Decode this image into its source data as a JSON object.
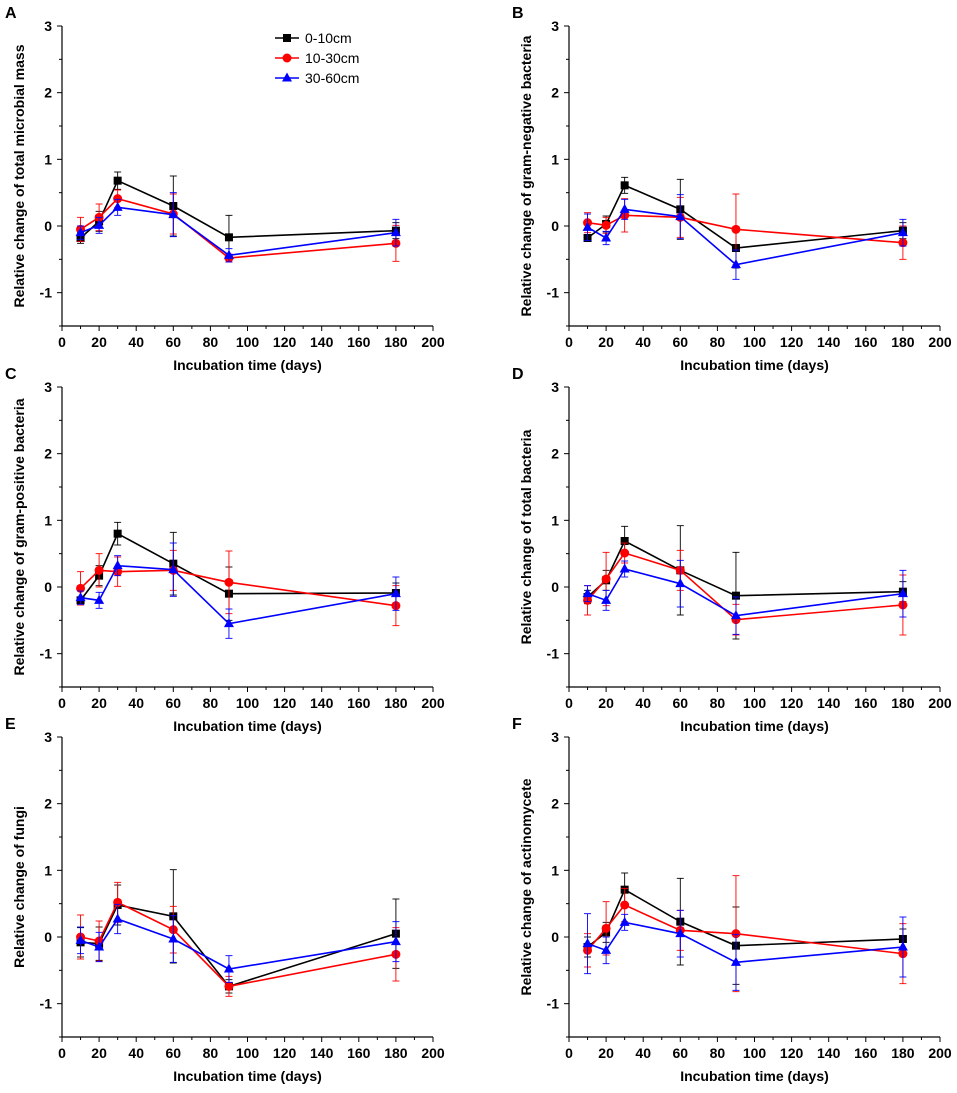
{
  "figure": {
    "xlabel": "Incubation time (days)"
  },
  "legend": [
    {
      "name": "0-10cm",
      "color": "#000000",
      "marker": "square"
    },
    {
      "name": "10-30cm",
      "color": "#ff0000",
      "marker": "circle"
    },
    {
      "name": "30-60cm",
      "color": "#0000ff",
      "marker": "triangle"
    }
  ],
  "chart_data": [
    {
      "panel": "A",
      "type": "line",
      "ylabel": "Relative change of total microbial mass",
      "xlabel": "Incubation time (days)",
      "xlim": [
        0,
        200
      ],
      "ylim": [
        -1.5,
        3
      ],
      "x": [
        10,
        20,
        30,
        60,
        90,
        180
      ],
      "series": [
        {
          "name": "0-10cm",
          "values": [
            -0.18,
            0.07,
            0.68,
            0.3,
            -0.17,
            -0.07
          ],
          "errors": [
            0.08,
            0.15,
            0.13,
            0.45,
            0.33,
            0.12
          ]
        },
        {
          "name": "10-30cm",
          "values": [
            -0.05,
            0.13,
            0.41,
            0.18,
            -0.48,
            -0.26
          ],
          "errors": [
            0.18,
            0.2,
            0.13,
            0.3,
            0.06,
            0.27
          ]
        },
        {
          "name": "30-60cm",
          "values": [
            -0.1,
            0.01,
            0.28,
            0.17,
            -0.44,
            -0.1
          ],
          "errors": [
            0.1,
            0.12,
            0.12,
            0.33,
            0.1,
            0.2
          ]
        }
      ]
    },
    {
      "panel": "B",
      "type": "line",
      "ylabel": "Relative change of gram-negative bacteria",
      "xlabel": "Incubation time (days)",
      "xlim": [
        0,
        200
      ],
      "ylim": [
        -1.5,
        3
      ],
      "x": [
        10,
        20,
        30,
        60,
        90,
        180
      ],
      "series": [
        {
          "name": "0-10cm",
          "values": [
            -0.18,
            0.03,
            0.61,
            0.25,
            -0.33,
            -0.07
          ],
          "errors": [
            0.05,
            0.12,
            0.12,
            0.45,
            0.3,
            0.12
          ]
        },
        {
          "name": "10-30cm",
          "values": [
            0.05,
            0.01,
            0.16,
            0.13,
            -0.05,
            -0.25
          ],
          "errors": [
            0.15,
            0.12,
            0.25,
            0.3,
            0.53,
            0.25
          ]
        },
        {
          "name": "30-60cm",
          "values": [
            -0.02,
            -0.18,
            0.25,
            0.14,
            -0.58,
            -0.1
          ],
          "errors": [
            0.2,
            0.1,
            0.15,
            0.33,
            0.22,
            0.2
          ]
        }
      ]
    },
    {
      "panel": "C",
      "type": "line",
      "ylabel": "Relative change of gram-positive bacteria",
      "xlabel": "Incubation time (days)",
      "xlim": [
        0,
        200
      ],
      "ylim": [
        -1.5,
        3
      ],
      "x": [
        10,
        20,
        30,
        60,
        90,
        180
      ],
      "series": [
        {
          "name": "0-10cm",
          "values": [
            -0.2,
            0.17,
            0.8,
            0.35,
            -0.1,
            -0.09
          ],
          "errors": [
            0.05,
            0.15,
            0.17,
            0.47,
            0.4,
            0.15
          ]
        },
        {
          "name": "10-30cm",
          "values": [
            -0.02,
            0.25,
            0.23,
            0.25,
            0.07,
            -0.28
          ],
          "errors": [
            0.25,
            0.25,
            0.22,
            0.3,
            0.47,
            0.3
          ]
        },
        {
          "name": "30-60cm",
          "values": [
            -0.16,
            -0.2,
            0.32,
            0.26,
            -0.55,
            -0.1
          ],
          "errors": [
            0.1,
            0.12,
            0.15,
            0.4,
            0.22,
            0.25
          ]
        }
      ]
    },
    {
      "panel": "D",
      "type": "line",
      "ylabel": "Relative change of total bacteria",
      "xlabel": "Incubation time (days)",
      "xlim": [
        0,
        200
      ],
      "ylim": [
        -1.5,
        3
      ],
      "x": [
        10,
        20,
        30,
        60,
        90,
        180
      ],
      "series": [
        {
          "name": "0-10cm",
          "values": [
            -0.15,
            0.1,
            0.69,
            0.25,
            -0.13,
            -0.07
          ],
          "errors": [
            0.1,
            0.15,
            0.22,
            0.67,
            0.65,
            0.15
          ]
        },
        {
          "name": "10-30cm",
          "values": [
            -0.2,
            0.12,
            0.51,
            0.25,
            -0.49,
            -0.27
          ],
          "errors": [
            0.22,
            0.4,
            0.15,
            0.3,
            0.23,
            0.45
          ]
        },
        {
          "name": "30-60cm",
          "values": [
            -0.1,
            -0.2,
            0.27,
            0.05,
            -0.43,
            -0.1
          ],
          "errors": [
            0.12,
            0.15,
            0.12,
            0.35,
            0.28,
            0.35
          ]
        }
      ]
    },
    {
      "panel": "E",
      "type": "line",
      "ylabel": "Relative change of fungi",
      "xlabel": "Incubation time (days)",
      "xlim": [
        0,
        200
      ],
      "ylim": [
        -1.5,
        3
      ],
      "x": [
        10,
        20,
        30,
        60,
        90,
        180
      ],
      "series": [
        {
          "name": "0-10cm",
          "values": [
            -0.08,
            -0.1,
            0.48,
            0.31,
            -0.74,
            0.05
          ],
          "errors": [
            0.22,
            0.25,
            0.3,
            0.7,
            0.1,
            0.52
          ]
        },
        {
          "name": "10-30cm",
          "values": [
            0.0,
            -0.06,
            0.52,
            0.11,
            -0.74,
            -0.26
          ],
          "errors": [
            0.33,
            0.3,
            0.3,
            0.35,
            0.15,
            0.4
          ]
        },
        {
          "name": "30-60cm",
          "values": [
            -0.05,
            -0.15,
            0.27,
            -0.03,
            -0.48,
            -0.07
          ],
          "errors": [
            0.2,
            0.22,
            0.22,
            0.35,
            0.2,
            0.3
          ]
        }
      ]
    },
    {
      "panel": "F",
      "type": "line",
      "ylabel": "Relative change of actinomycete",
      "xlabel": "Incubation time (days)",
      "xlim": [
        0,
        200
      ],
      "ylim": [
        -1.5,
        3
      ],
      "x": [
        10,
        20,
        30,
        60,
        90,
        180
      ],
      "series": [
        {
          "name": "0-10cm",
          "values": [
            -0.15,
            0.07,
            0.71,
            0.23,
            -0.13,
            -0.03
          ],
          "errors": [
            0.15,
            0.15,
            0.25,
            0.65,
            0.58,
            0.15
          ]
        },
        {
          "name": "10-30cm",
          "values": [
            -0.2,
            0.13,
            0.48,
            0.1,
            0.05,
            -0.25
          ],
          "errors": [
            0.25,
            0.4,
            0.25,
            0.3,
            0.87,
            0.45
          ]
        },
        {
          "name": "30-60cm",
          "values": [
            -0.1,
            -0.2,
            0.22,
            0.05,
            -0.38,
            -0.15
          ],
          "errors": [
            0.45,
            0.2,
            0.12,
            0.35,
            0.42,
            0.45
          ]
        }
      ]
    }
  ]
}
